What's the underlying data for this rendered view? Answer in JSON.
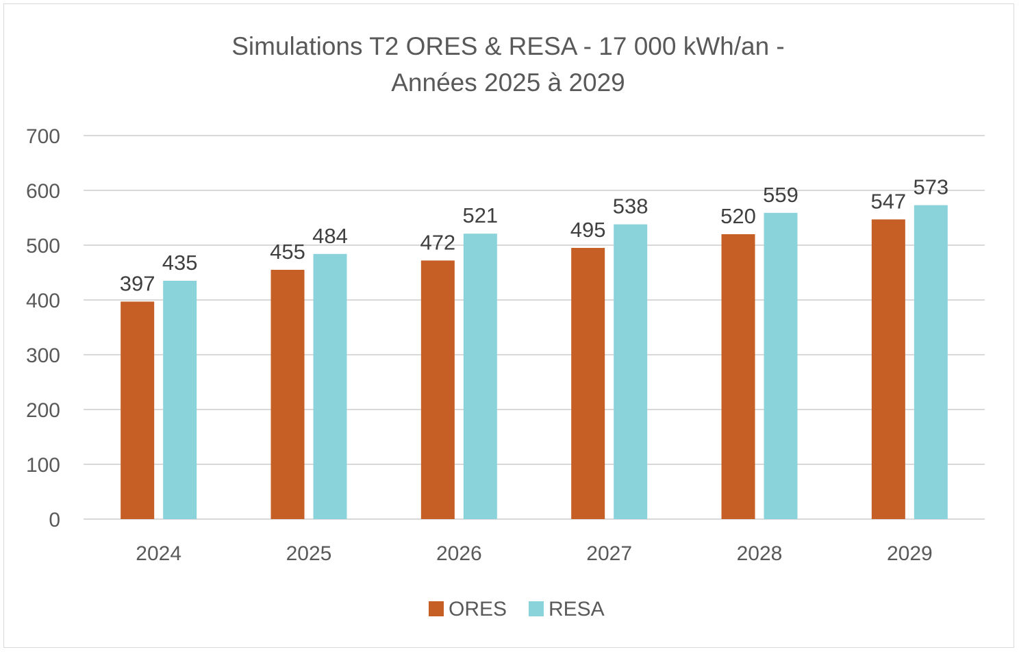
{
  "chart_data": {
    "type": "bar",
    "title": [
      "Simulations T2 ORES & RESA - 17 000 kWh/an -",
      "Années 2025 à 2029"
    ],
    "xlabel": "",
    "ylabel": "",
    "categories": [
      "2024",
      "2025",
      "2026",
      "2027",
      "2028",
      "2029"
    ],
    "series": [
      {
        "name": "ORES",
        "color": "#C55F26",
        "values": [
          397,
          455,
          472,
          495,
          520,
          547
        ]
      },
      {
        "name": "RESA",
        "color": "#8BD3DB",
        "values": [
          435,
          484,
          521,
          538,
          559,
          573
        ]
      }
    ],
    "ylim": [
      0,
      700
    ],
    "yticks": [
      0,
      100,
      200,
      300,
      400,
      500,
      600,
      700
    ],
    "grid": true,
    "data_labels": true,
    "legend_position": "bottom"
  }
}
